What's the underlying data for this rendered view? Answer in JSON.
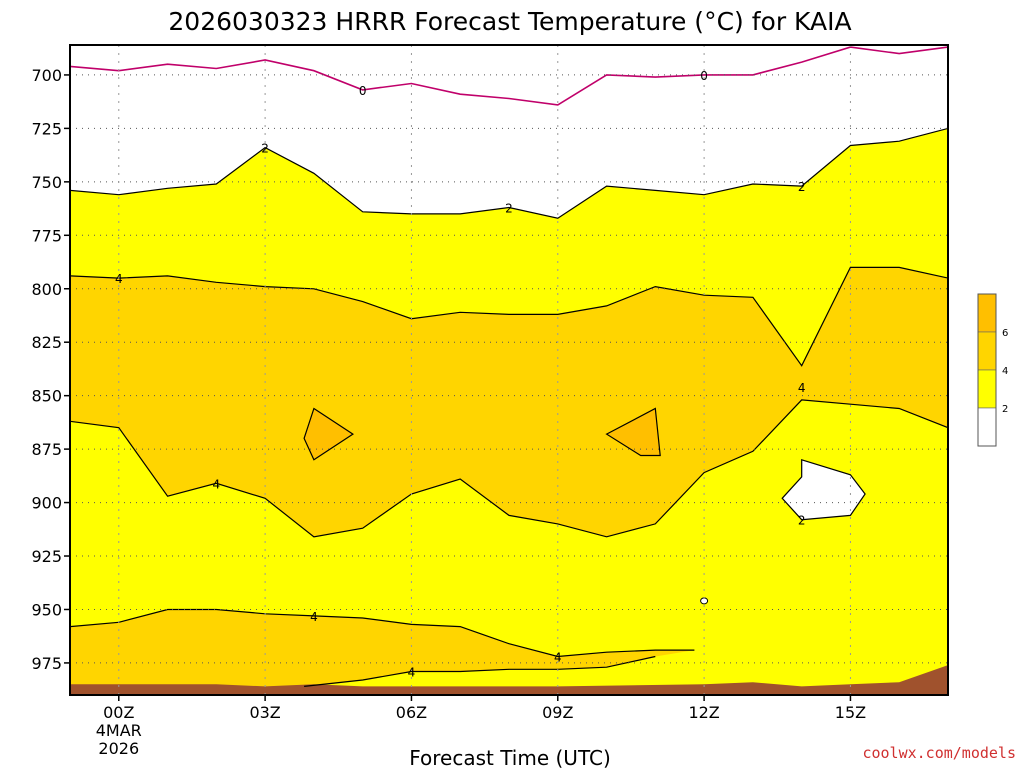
{
  "chart_data": {
    "type": "contour",
    "title": "2026030323 HRRR Forecast Temperature (°C) for KAIA",
    "xlabel": "Forecast Time (UTC)",
    "ylabel": "",
    "credit": "coolwx.com/models",
    "x_ticks": [
      {
        "h": 0,
        "lines": [
          "00Z",
          "4MAR",
          "2026"
        ]
      },
      {
        "h": 3,
        "lines": [
          "03Z"
        ]
      },
      {
        "h": 6,
        "lines": [
          "06Z"
        ]
      },
      {
        "h": 9,
        "lines": [
          "09Z"
        ]
      },
      {
        "h": 12,
        "lines": [
          "12Z"
        ]
      },
      {
        "h": 15,
        "lines": [
          "15Z"
        ]
      }
    ],
    "y_ticks": [
      700,
      725,
      750,
      775,
      800,
      825,
      850,
      875,
      900,
      925,
      950,
      975
    ],
    "xlim": [
      -1,
      17
    ],
    "ylim": [
      990,
      686
    ],
    "grid": true,
    "colors": {
      "below_2": "#ffffff",
      "2_to_4": "#ffff00",
      "4_to_6": "#ffd500",
      "above_6": "#ffbf00",
      "ground": "#a0522d",
      "zero_line": "#c0006a",
      "contour": "#000000"
    },
    "legend": {
      "placement": "right",
      "levels": [
        "2",
        "4",
        "6"
      ]
    },
    "contours": {
      "zero_c": [
        [
          -1,
          696
        ],
        [
          0,
          698
        ],
        [
          1,
          695
        ],
        [
          2,
          697
        ],
        [
          3,
          693
        ],
        [
          4,
          698
        ],
        [
          5,
          707
        ],
        [
          6,
          704
        ],
        [
          7,
          709
        ],
        [
          8,
          711
        ],
        [
          9,
          714
        ],
        [
          10,
          700
        ],
        [
          11,
          701
        ],
        [
          12,
          700
        ],
        [
          13,
          700
        ],
        [
          14,
          694
        ],
        [
          15,
          687
        ],
        [
          16,
          690
        ],
        [
          17,
          687
        ]
      ],
      "two_c_upper": [
        [
          -1,
          754
        ],
        [
          0,
          756
        ],
        [
          1,
          753
        ],
        [
          2,
          751
        ],
        [
          3,
          734
        ],
        [
          4,
          746
        ],
        [
          5,
          764
        ],
        [
          6,
          765
        ],
        [
          7,
          765
        ],
        [
          8,
          762
        ],
        [
          9,
          767
        ],
        [
          10,
          752
        ],
        [
          11,
          754
        ],
        [
          12,
          756
        ],
        [
          13,
          751
        ],
        [
          14,
          752
        ],
        [
          15,
          733
        ],
        [
          16,
          731
        ],
        [
          17,
          725
        ]
      ],
      "four_c_upper": [
        [
          -1,
          794
        ],
        [
          0,
          795
        ],
        [
          1,
          794
        ],
        [
          2,
          797
        ],
        [
          3,
          799
        ],
        [
          4,
          800
        ],
        [
          5,
          806
        ],
        [
          6,
          814
        ],
        [
          7,
          811
        ],
        [
          8,
          812
        ],
        [
          9,
          812
        ],
        [
          10,
          808
        ],
        [
          11,
          799
        ],
        [
          12,
          803
        ],
        [
          13,
          804
        ],
        [
          14,
          836
        ],
        [
          15,
          790
        ],
        [
          16,
          790
        ],
        [
          17,
          795
        ]
      ],
      "four_c_lower": [
        [
          -1,
          862
        ],
        [
          0,
          865
        ],
        [
          1,
          897
        ],
        [
          2,
          891
        ],
        [
          3,
          898
        ],
        [
          4,
          916
        ],
        [
          5,
          912
        ],
        [
          6,
          896
        ],
        [
          7,
          889
        ],
        [
          8,
          906
        ],
        [
          9,
          910
        ],
        [
          10,
          916
        ],
        [
          11,
          910
        ],
        [
          12,
          886
        ],
        [
          13,
          876
        ],
        [
          14,
          852
        ],
        [
          15,
          854
        ],
        [
          16,
          856
        ],
        [
          17,
          865
        ]
      ],
      "two_c_pocket": [
        [
          14,
          880
        ],
        [
          15,
          887
        ],
        [
          15.3,
          896
        ],
        [
          15,
          906
        ],
        [
          14,
          908
        ],
        [
          13.6,
          898
        ],
        [
          14,
          888
        ]
      ],
      "six_c_left": [
        [
          4,
          856
        ],
        [
          4.8,
          868
        ],
        [
          4,
          880
        ],
        [
          3.8,
          870
        ]
      ],
      "six_c_right": [
        [
          10,
          868
        ],
        [
          11,
          856
        ],
        [
          11.1,
          878
        ],
        [
          10.7,
          878
        ]
      ],
      "two_c_dot": [
        [
          12,
          946
        ]
      ],
      "four_c_bottom_upper": [
        [
          -1,
          958
        ],
        [
          0,
          956
        ],
        [
          1,
          950
        ],
        [
          2,
          950
        ],
        [
          3,
          952
        ],
        [
          4,
          953
        ],
        [
          5,
          954
        ],
        [
          6,
          957
        ],
        [
          7,
          958
        ],
        [
          8,
          966
        ],
        [
          9,
          972
        ],
        [
          10,
          970
        ],
        [
          11,
          969
        ],
        [
          11.8,
          969
        ]
      ],
      "four_c_bottom_lower": [
        [
          3.8,
          986
        ],
        [
          5,
          983
        ],
        [
          6,
          979
        ],
        [
          7,
          979
        ],
        [
          8,
          978
        ],
        [
          9,
          978
        ],
        [
          10,
          977
        ],
        [
          11,
          972
        ]
      ],
      "ground_top": [
        [
          -1,
          985
        ],
        [
          2,
          985
        ],
        [
          3,
          986
        ],
        [
          4,
          985
        ],
        [
          5,
          986
        ],
        [
          9,
          986
        ],
        [
          12,
          985
        ],
        [
          13,
          984
        ],
        [
          14,
          986
        ],
        [
          15,
          985
        ],
        [
          16,
          984
        ],
        [
          17,
          976
        ]
      ]
    },
    "contour_labels": [
      {
        "text": "0",
        "h": 5,
        "p": 707
      },
      {
        "text": "0",
        "h": 12,
        "p": 700
      },
      {
        "text": "2",
        "h": 3,
        "p": 734
      },
      {
        "text": "2",
        "h": 8,
        "p": 762
      },
      {
        "text": "2",
        "h": 14,
        "p": 752
      },
      {
        "text": "4",
        "h": 0,
        "p": 795
      },
      {
        "text": "4",
        "h": 14,
        "p": 846
      },
      {
        "text": "4",
        "h": 2,
        "p": 891
      },
      {
        "text": "2",
        "h": 14,
        "p": 908
      },
      {
        "text": "4",
        "h": 4,
        "p": 953
      },
      {
        "text": "4",
        "h": 9,
        "p": 972
      },
      {
        "text": "4",
        "h": 6,
        "p": 979
      }
    ]
  }
}
